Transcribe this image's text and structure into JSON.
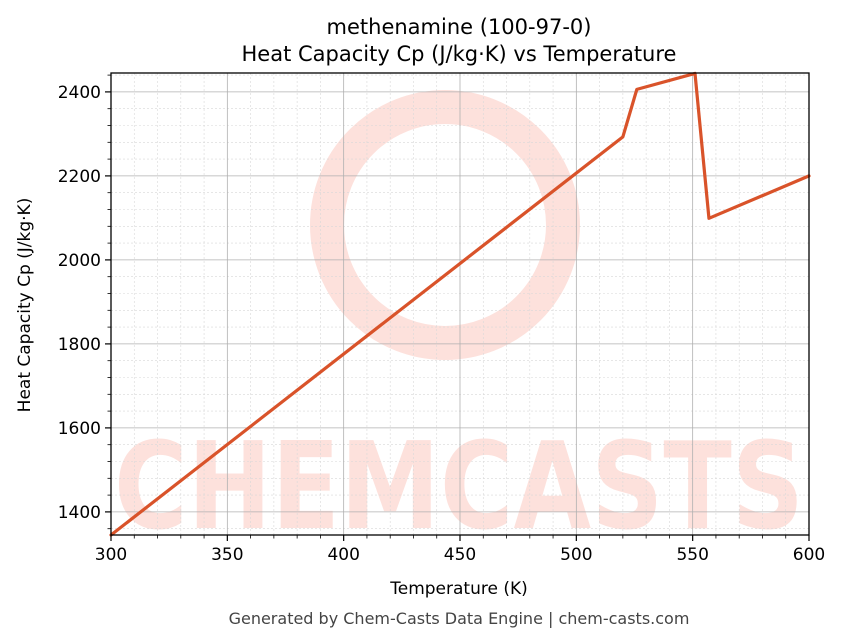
{
  "title_line1": "methenamine (100-97-0)",
  "title_line2": "Heat Capacity Cp (J/kg·K) vs Temperature",
  "footer": "Generated by Chem-Casts Data Engine | chem-casts.com",
  "watermark_text": "CHEMCASTS",
  "colors": {
    "line": "#d9532a",
    "watermark": "#fde1dc",
    "grid": "#b0b0b0"
  },
  "chart_data": {
    "type": "line",
    "xlabel": "Temperature (K)",
    "ylabel": "Heat Capacity Cp (J/kg·K)",
    "xlim": [
      300,
      600
    ],
    "ylim": [
      1345,
      2445
    ],
    "xticks": [
      300,
      350,
      400,
      450,
      500,
      550,
      600
    ],
    "yticks": [
      1400,
      1600,
      1800,
      2000,
      2200,
      2400
    ],
    "grid": true,
    "series": [
      {
        "x": [
          300,
          520,
          526,
          551,
          557,
          600
        ],
        "y": [
          1345,
          2293,
          2406,
          2444,
          2099,
          2200
        ]
      }
    ]
  }
}
